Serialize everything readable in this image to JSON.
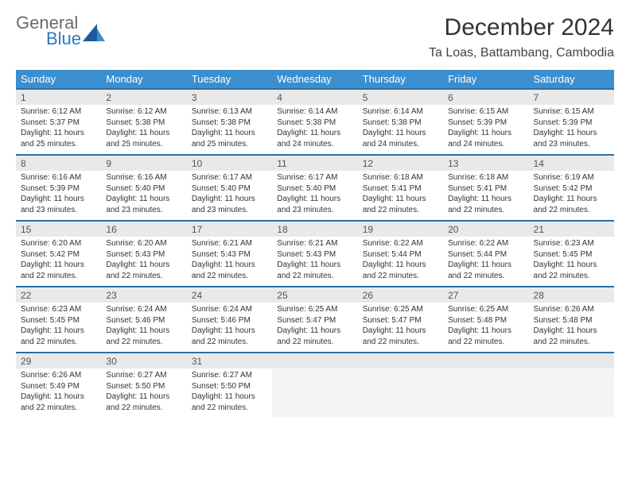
{
  "logo": {
    "word1": "General",
    "word2": "Blue"
  },
  "header": {
    "title": "December 2024",
    "location": "Ta Loas, Battambang, Cambodia"
  },
  "colors": {
    "header_bg": "#3b8fce",
    "header_text": "#ffffff",
    "date_bg": "#e9e9e9",
    "rule": "#2e6fa3",
    "logo_gray": "#6b6b6b",
    "logo_blue": "#2b7bbf"
  },
  "weekdays": [
    "Sunday",
    "Monday",
    "Tuesday",
    "Wednesday",
    "Thursday",
    "Friday",
    "Saturday"
  ],
  "weeks": [
    [
      {
        "date": "1",
        "sunrise": "Sunrise: 6:12 AM",
        "sunset": "Sunset: 5:37 PM",
        "daylight": "Daylight: 11 hours and 25 minutes."
      },
      {
        "date": "2",
        "sunrise": "Sunrise: 6:12 AM",
        "sunset": "Sunset: 5:38 PM",
        "daylight": "Daylight: 11 hours and 25 minutes."
      },
      {
        "date": "3",
        "sunrise": "Sunrise: 6:13 AM",
        "sunset": "Sunset: 5:38 PM",
        "daylight": "Daylight: 11 hours and 25 minutes."
      },
      {
        "date": "4",
        "sunrise": "Sunrise: 6:14 AM",
        "sunset": "Sunset: 5:38 PM",
        "daylight": "Daylight: 11 hours and 24 minutes."
      },
      {
        "date": "5",
        "sunrise": "Sunrise: 6:14 AM",
        "sunset": "Sunset: 5:38 PM",
        "daylight": "Daylight: 11 hours and 24 minutes."
      },
      {
        "date": "6",
        "sunrise": "Sunrise: 6:15 AM",
        "sunset": "Sunset: 5:39 PM",
        "daylight": "Daylight: 11 hours and 24 minutes."
      },
      {
        "date": "7",
        "sunrise": "Sunrise: 6:15 AM",
        "sunset": "Sunset: 5:39 PM",
        "daylight": "Daylight: 11 hours and 23 minutes."
      }
    ],
    [
      {
        "date": "8",
        "sunrise": "Sunrise: 6:16 AM",
        "sunset": "Sunset: 5:39 PM",
        "daylight": "Daylight: 11 hours and 23 minutes."
      },
      {
        "date": "9",
        "sunrise": "Sunrise: 6:16 AM",
        "sunset": "Sunset: 5:40 PM",
        "daylight": "Daylight: 11 hours and 23 minutes."
      },
      {
        "date": "10",
        "sunrise": "Sunrise: 6:17 AM",
        "sunset": "Sunset: 5:40 PM",
        "daylight": "Daylight: 11 hours and 23 minutes."
      },
      {
        "date": "11",
        "sunrise": "Sunrise: 6:17 AM",
        "sunset": "Sunset: 5:40 PM",
        "daylight": "Daylight: 11 hours and 23 minutes."
      },
      {
        "date": "12",
        "sunrise": "Sunrise: 6:18 AM",
        "sunset": "Sunset: 5:41 PM",
        "daylight": "Daylight: 11 hours and 22 minutes."
      },
      {
        "date": "13",
        "sunrise": "Sunrise: 6:18 AM",
        "sunset": "Sunset: 5:41 PM",
        "daylight": "Daylight: 11 hours and 22 minutes."
      },
      {
        "date": "14",
        "sunrise": "Sunrise: 6:19 AM",
        "sunset": "Sunset: 5:42 PM",
        "daylight": "Daylight: 11 hours and 22 minutes."
      }
    ],
    [
      {
        "date": "15",
        "sunrise": "Sunrise: 6:20 AM",
        "sunset": "Sunset: 5:42 PM",
        "daylight": "Daylight: 11 hours and 22 minutes."
      },
      {
        "date": "16",
        "sunrise": "Sunrise: 6:20 AM",
        "sunset": "Sunset: 5:43 PM",
        "daylight": "Daylight: 11 hours and 22 minutes."
      },
      {
        "date": "17",
        "sunrise": "Sunrise: 6:21 AM",
        "sunset": "Sunset: 5:43 PM",
        "daylight": "Daylight: 11 hours and 22 minutes."
      },
      {
        "date": "18",
        "sunrise": "Sunrise: 6:21 AM",
        "sunset": "Sunset: 5:43 PM",
        "daylight": "Daylight: 11 hours and 22 minutes."
      },
      {
        "date": "19",
        "sunrise": "Sunrise: 6:22 AM",
        "sunset": "Sunset: 5:44 PM",
        "daylight": "Daylight: 11 hours and 22 minutes."
      },
      {
        "date": "20",
        "sunrise": "Sunrise: 6:22 AM",
        "sunset": "Sunset: 5:44 PM",
        "daylight": "Daylight: 11 hours and 22 minutes."
      },
      {
        "date": "21",
        "sunrise": "Sunrise: 6:23 AM",
        "sunset": "Sunset: 5:45 PM",
        "daylight": "Daylight: 11 hours and 22 minutes."
      }
    ],
    [
      {
        "date": "22",
        "sunrise": "Sunrise: 6:23 AM",
        "sunset": "Sunset: 5:45 PM",
        "daylight": "Daylight: 11 hours and 22 minutes."
      },
      {
        "date": "23",
        "sunrise": "Sunrise: 6:24 AM",
        "sunset": "Sunset: 5:46 PM",
        "daylight": "Daylight: 11 hours and 22 minutes."
      },
      {
        "date": "24",
        "sunrise": "Sunrise: 6:24 AM",
        "sunset": "Sunset: 5:46 PM",
        "daylight": "Daylight: 11 hours and 22 minutes."
      },
      {
        "date": "25",
        "sunrise": "Sunrise: 6:25 AM",
        "sunset": "Sunset: 5:47 PM",
        "daylight": "Daylight: 11 hours and 22 minutes."
      },
      {
        "date": "26",
        "sunrise": "Sunrise: 6:25 AM",
        "sunset": "Sunset: 5:47 PM",
        "daylight": "Daylight: 11 hours and 22 minutes."
      },
      {
        "date": "27",
        "sunrise": "Sunrise: 6:25 AM",
        "sunset": "Sunset: 5:48 PM",
        "daylight": "Daylight: 11 hours and 22 minutes."
      },
      {
        "date": "28",
        "sunrise": "Sunrise: 6:26 AM",
        "sunset": "Sunset: 5:48 PM",
        "daylight": "Daylight: 11 hours and 22 minutes."
      }
    ],
    [
      {
        "date": "29",
        "sunrise": "Sunrise: 6:26 AM",
        "sunset": "Sunset: 5:49 PM",
        "daylight": "Daylight: 11 hours and 22 minutes."
      },
      {
        "date": "30",
        "sunrise": "Sunrise: 6:27 AM",
        "sunset": "Sunset: 5:50 PM",
        "daylight": "Daylight: 11 hours and 22 minutes."
      },
      {
        "date": "31",
        "sunrise": "Sunrise: 6:27 AM",
        "sunset": "Sunset: 5:50 PM",
        "daylight": "Daylight: 11 hours and 22 minutes."
      },
      null,
      null,
      null,
      null
    ]
  ]
}
